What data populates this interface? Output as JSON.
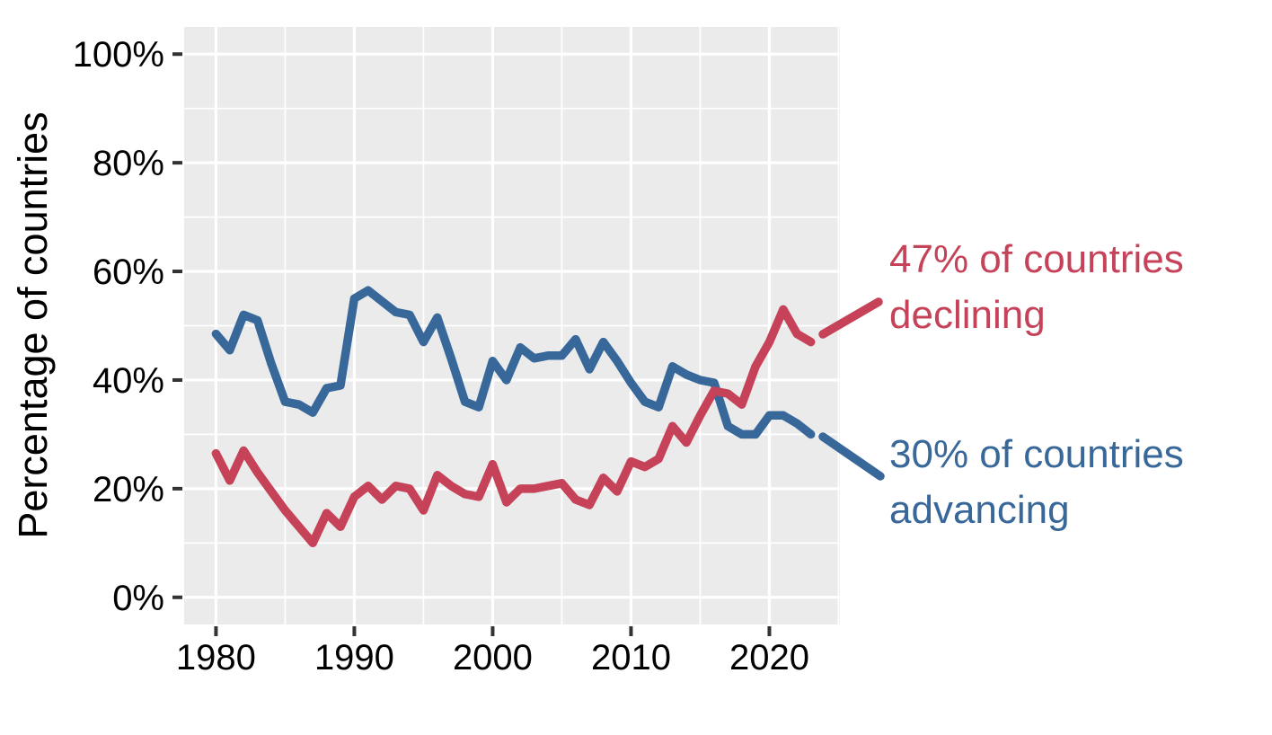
{
  "chart_data": {
    "type": "line",
    "title": "",
    "ylabel": "Percentage of countries",
    "xlabel": "",
    "grid": true,
    "legend_position": "none",
    "panel_bg": "#ebebeb",
    "grid_color": "#ffffff",
    "tick_color": "#333333",
    "text_color": "#000000",
    "xlim": [
      1977.7,
      2025.1
    ],
    "ylim": [
      -5,
      105
    ],
    "x_ticks": {
      "values": [
        1980,
        1990,
        2000,
        2010,
        2020
      ],
      "labels": [
        "1980",
        "1990",
        "2000",
        "2010",
        "2020"
      ]
    },
    "y_ticks": {
      "values": [
        0,
        20,
        40,
        60,
        80,
        100
      ],
      "labels": [
        "0%",
        "20%",
        "40%",
        "60%",
        "80%",
        "100%"
      ]
    },
    "x_minor": [
      1985,
      1995,
      2005,
      2015,
      2025
    ],
    "y_minor": [
      10,
      30,
      50,
      70,
      90
    ],
    "x": [
      1980,
      1981,
      1982,
      1983,
      1984,
      1985,
      1986,
      1987,
      1988,
      1989,
      1990,
      1991,
      1992,
      1993,
      1994,
      1995,
      1996,
      1997,
      1998,
      1999,
      2000,
      2001,
      2002,
      2003,
      2004,
      2005,
      2006,
      2007,
      2008,
      2009,
      2010,
      2011,
      2012,
      2013,
      2014,
      2015,
      2016,
      2017,
      2018,
      2019,
      2020,
      2021,
      2022,
      2023
    ],
    "series": [
      {
        "name": "advancing",
        "color": "#38689a",
        "values": [
          48.5,
          45.5,
          52,
          51,
          43,
          36,
          35.5,
          34,
          38.5,
          39,
          55,
          56.5,
          54.5,
          52.5,
          52,
          47,
          51.5,
          44,
          36,
          35,
          43.5,
          40,
          46,
          44,
          44.5,
          44.5,
          47.5,
          42,
          47,
          43.5,
          39.5,
          36,
          35,
          42.5,
          41,
          40,
          39.5,
          31.5,
          30,
          30,
          33.5,
          33.5,
          32,
          30
        ]
      },
      {
        "name": "declining",
        "color": "#c64258",
        "values": [
          26.5,
          21.5,
          27,
          23,
          19.5,
          16,
          13,
          10,
          15.5,
          13,
          18.5,
          20.5,
          18,
          20.5,
          20,
          16,
          22.5,
          20.5,
          19,
          18.5,
          24.5,
          17.5,
          20,
          20,
          20.5,
          21,
          18,
          17,
          22,
          19.5,
          25,
          24,
          25.5,
          31.5,
          28.5,
          33.5,
          38,
          37.5,
          35.5,
          42.5,
          47,
          53,
          48.5,
          47
        ]
      }
    ],
    "annotations": [
      {
        "series": "declining",
        "line1": "47% of countries",
        "line2": "declining",
        "color": "#c64258"
      },
      {
        "series": "advancing",
        "line1": "30% of countries",
        "line2": "advancing",
        "color": "#38689a"
      }
    ]
  }
}
